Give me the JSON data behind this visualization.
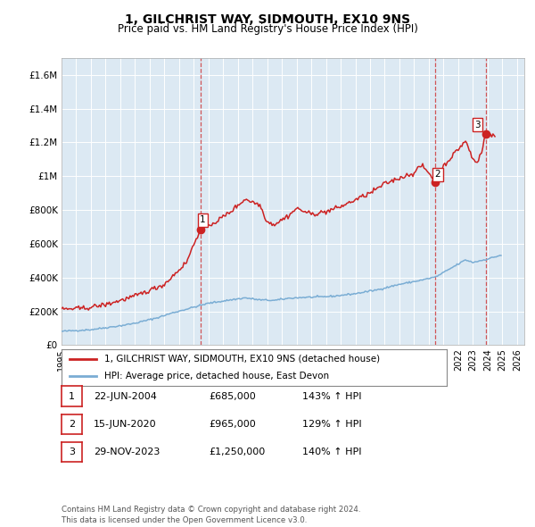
{
  "title": "1, GILCHRIST WAY, SIDMOUTH, EX10 9NS",
  "subtitle": "Price paid vs. HM Land Registry's House Price Index (HPI)",
  "hpi_color": "#7aadd4",
  "price_color": "#cc2222",
  "sale_color": "#cc2222",
  "plot_bg": "#dce9f3",
  "ylim": [
    0,
    1700000
  ],
  "xlim_start": 1995.0,
  "xlim_end": 2026.5,
  "sales": [
    {
      "date": 2004.472,
      "price": 685000,
      "label": "1"
    },
    {
      "date": 2020.455,
      "price": 965000,
      "label": "2"
    },
    {
      "date": 2023.913,
      "price": 1250000,
      "label": "3"
    }
  ],
  "legend_price_label": "1, GILCHRIST WAY, SIDMOUTH, EX10 9NS (detached house)",
  "legend_hpi_label": "HPI: Average price, detached house, East Devon",
  "table_rows": [
    {
      "num": "1",
      "date": "22-JUN-2004",
      "price": "£685,000",
      "pct": "143% ↑ HPI"
    },
    {
      "num": "2",
      "date": "15-JUN-2020",
      "price": "£965,000",
      "pct": "129% ↑ HPI"
    },
    {
      "num": "3",
      "date": "29-NOV-2023",
      "price": "£1,250,000",
      "pct": "140% ↑ HPI"
    }
  ],
  "footer": "Contains HM Land Registry data © Crown copyright and database right 2024.\nThis data is licensed under the Open Government Licence v3.0.",
  "yticks": [
    0,
    200000,
    400000,
    600000,
    800000,
    1000000,
    1200000,
    1400000,
    1600000
  ],
  "ytick_labels": [
    "£0",
    "£200K",
    "£400K",
    "£600K",
    "£800K",
    "£1M",
    "£1.2M",
    "£1.4M",
    "£1.6M"
  ]
}
